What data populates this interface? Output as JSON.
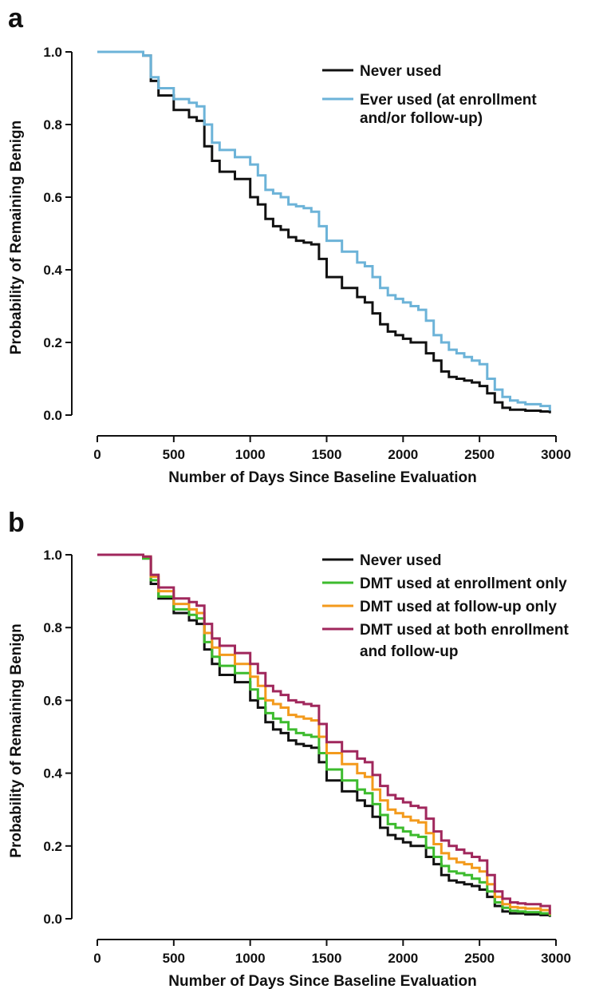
{
  "chart_data": [
    {
      "panel": "a",
      "type": "line",
      "xlabel": "Number of Days Since Baseline Evaluation",
      "ylabel": "Probability of Remaining Benign",
      "xlim": [
        0,
        3000
      ],
      "ylim": [
        0.0,
        1.0
      ],
      "xticks": [
        "0",
        "500",
        "1000",
        "1500",
        "2000",
        "2500",
        "3000"
      ],
      "yticks": [
        "0.0",
        "0.2",
        "0.4",
        "0.6",
        "0.8",
        "1.0"
      ],
      "legend_position": "top-right",
      "series": [
        {
          "name": "Never used",
          "color": "#111111",
          "x": [
            0,
            150,
            300,
            350,
            400,
            500,
            600,
            650,
            700,
            750,
            800,
            900,
            1000,
            1050,
            1100,
            1150,
            1200,
            1250,
            1300,
            1350,
            1400,
            1450,
            1500,
            1600,
            1700,
            1750,
            1800,
            1850,
            1900,
            1950,
            2000,
            2050,
            2100,
            2150,
            2200,
            2250,
            2300,
            2350,
            2400,
            2450,
            2500,
            2550,
            2600,
            2650,
            2700,
            2750,
            2800,
            2900,
            2960
          ],
          "y": [
            1.0,
            1.0,
            0.99,
            0.92,
            0.88,
            0.84,
            0.82,
            0.81,
            0.74,
            0.7,
            0.67,
            0.65,
            0.6,
            0.58,
            0.54,
            0.52,
            0.51,
            0.49,
            0.48,
            0.475,
            0.47,
            0.43,
            0.38,
            0.35,
            0.325,
            0.31,
            0.28,
            0.25,
            0.23,
            0.22,
            0.21,
            0.2,
            0.2,
            0.17,
            0.15,
            0.12,
            0.105,
            0.1,
            0.095,
            0.09,
            0.08,
            0.06,
            0.035,
            0.02,
            0.015,
            0.015,
            0.012,
            0.01,
            0.005
          ]
        },
        {
          "name": "Ever used (at enrollment and/or follow-up)",
          "color": "#6cb3d8",
          "x": [
            0,
            150,
            300,
            350,
            400,
            500,
            600,
            650,
            700,
            750,
            800,
            900,
            1000,
            1050,
            1100,
            1150,
            1200,
            1250,
            1300,
            1350,
            1400,
            1450,
            1500,
            1600,
            1700,
            1750,
            1800,
            1850,
            1900,
            1950,
            2000,
            2050,
            2100,
            2150,
            2200,
            2250,
            2300,
            2350,
            2400,
            2450,
            2500,
            2550,
            2600,
            2650,
            2700,
            2750,
            2800,
            2900,
            2960
          ],
          "y": [
            1.0,
            1.0,
            0.99,
            0.93,
            0.9,
            0.87,
            0.86,
            0.85,
            0.8,
            0.75,
            0.73,
            0.71,
            0.69,
            0.66,
            0.62,
            0.61,
            0.6,
            0.58,
            0.575,
            0.57,
            0.56,
            0.52,
            0.48,
            0.45,
            0.42,
            0.41,
            0.38,
            0.35,
            0.33,
            0.32,
            0.31,
            0.3,
            0.29,
            0.26,
            0.22,
            0.2,
            0.18,
            0.17,
            0.16,
            0.15,
            0.14,
            0.1,
            0.07,
            0.05,
            0.04,
            0.035,
            0.03,
            0.025,
            0.012
          ]
        }
      ]
    },
    {
      "panel": "b",
      "type": "line",
      "xlabel": "Number of Days Since Baseline Evaluation",
      "ylabel": "Probability of Remaining Benign",
      "xlim": [
        0,
        3000
      ],
      "ylim": [
        0.0,
        1.0
      ],
      "xticks": [
        "0",
        "500",
        "1000",
        "1500",
        "2000",
        "2500",
        "3000"
      ],
      "yticks": [
        "0.0",
        "0.2",
        "0.4",
        "0.6",
        "0.8",
        "1.0"
      ],
      "legend_position": "top-right",
      "series": [
        {
          "name": "Never used",
          "color": "#111111",
          "x": [
            0,
            150,
            300,
            350,
            400,
            500,
            600,
            650,
            700,
            750,
            800,
            900,
            1000,
            1050,
            1100,
            1150,
            1200,
            1250,
            1300,
            1350,
            1400,
            1450,
            1500,
            1600,
            1700,
            1750,
            1800,
            1850,
            1900,
            1950,
            2000,
            2050,
            2100,
            2150,
            2200,
            2250,
            2300,
            2350,
            2400,
            2450,
            2500,
            2550,
            2600,
            2650,
            2700,
            2750,
            2800,
            2900,
            2960
          ],
          "y": [
            1.0,
            1.0,
            0.99,
            0.92,
            0.88,
            0.84,
            0.82,
            0.81,
            0.74,
            0.7,
            0.67,
            0.65,
            0.6,
            0.58,
            0.54,
            0.52,
            0.51,
            0.49,
            0.48,
            0.475,
            0.47,
            0.43,
            0.38,
            0.35,
            0.325,
            0.31,
            0.28,
            0.25,
            0.23,
            0.22,
            0.21,
            0.2,
            0.2,
            0.17,
            0.15,
            0.12,
            0.105,
            0.1,
            0.095,
            0.09,
            0.08,
            0.06,
            0.035,
            0.02,
            0.015,
            0.015,
            0.012,
            0.01,
            0.005
          ]
        },
        {
          "name": "DMT used at enrollment only",
          "color": "#3dbb2e",
          "x": [
            0,
            150,
            300,
            350,
            400,
            500,
            600,
            650,
            700,
            750,
            800,
            900,
            1000,
            1050,
            1100,
            1150,
            1200,
            1250,
            1300,
            1350,
            1400,
            1450,
            1500,
            1600,
            1700,
            1750,
            1800,
            1850,
            1900,
            1950,
            2000,
            2050,
            2100,
            2150,
            2200,
            2250,
            2300,
            2350,
            2400,
            2450,
            2500,
            2550,
            2600,
            2650,
            2700,
            2750,
            2800,
            2900,
            2960
          ],
          "y": [
            1.0,
            1.0,
            0.99,
            0.93,
            0.885,
            0.85,
            0.835,
            0.825,
            0.76,
            0.72,
            0.695,
            0.675,
            0.63,
            0.605,
            0.565,
            0.55,
            0.54,
            0.52,
            0.51,
            0.505,
            0.5,
            0.455,
            0.41,
            0.38,
            0.355,
            0.345,
            0.315,
            0.285,
            0.26,
            0.25,
            0.24,
            0.23,
            0.225,
            0.195,
            0.17,
            0.145,
            0.13,
            0.125,
            0.12,
            0.11,
            0.1,
            0.075,
            0.045,
            0.03,
            0.022,
            0.02,
            0.018,
            0.015,
            0.007
          ]
        },
        {
          "name": "DMT used at follow-up only",
          "color": "#f39a1c",
          "x": [
            0,
            150,
            300,
            350,
            400,
            500,
            600,
            650,
            700,
            750,
            800,
            900,
            1000,
            1050,
            1100,
            1150,
            1200,
            1250,
            1300,
            1350,
            1400,
            1450,
            1500,
            1600,
            1700,
            1750,
            1800,
            1850,
            1900,
            1950,
            2000,
            2050,
            2100,
            2150,
            2200,
            2250,
            2300,
            2350,
            2400,
            2450,
            2500,
            2550,
            2600,
            2650,
            2700,
            2750,
            2800,
            2900,
            2960
          ],
          "y": [
            1.0,
            1.0,
            0.995,
            0.94,
            0.9,
            0.865,
            0.85,
            0.84,
            0.785,
            0.745,
            0.725,
            0.7,
            0.665,
            0.64,
            0.6,
            0.59,
            0.58,
            0.56,
            0.555,
            0.55,
            0.545,
            0.5,
            0.455,
            0.425,
            0.4,
            0.39,
            0.355,
            0.325,
            0.3,
            0.29,
            0.28,
            0.27,
            0.265,
            0.235,
            0.205,
            0.18,
            0.165,
            0.155,
            0.15,
            0.14,
            0.13,
            0.095,
            0.06,
            0.04,
            0.032,
            0.03,
            0.028,
            0.024,
            0.01
          ]
        },
        {
          "name": "DMT used at both enrollment and follow-up",
          "color": "#a0275c",
          "x": [
            0,
            150,
            300,
            350,
            400,
            500,
            600,
            650,
            700,
            750,
            800,
            900,
            1000,
            1050,
            1100,
            1150,
            1200,
            1250,
            1300,
            1350,
            1400,
            1450,
            1500,
            1600,
            1700,
            1750,
            1800,
            1850,
            1900,
            1950,
            2000,
            2050,
            2100,
            2150,
            2200,
            2250,
            2300,
            2350,
            2400,
            2450,
            2500,
            2550,
            2600,
            2650,
            2700,
            2750,
            2800,
            2900,
            2960
          ],
          "y": [
            1.0,
            1.0,
            0.995,
            0.945,
            0.91,
            0.88,
            0.87,
            0.86,
            0.81,
            0.77,
            0.75,
            0.73,
            0.7,
            0.675,
            0.64,
            0.625,
            0.615,
            0.6,
            0.595,
            0.59,
            0.585,
            0.535,
            0.485,
            0.46,
            0.44,
            0.43,
            0.395,
            0.365,
            0.34,
            0.33,
            0.32,
            0.31,
            0.305,
            0.275,
            0.24,
            0.215,
            0.2,
            0.19,
            0.18,
            0.17,
            0.16,
            0.12,
            0.075,
            0.055,
            0.045,
            0.042,
            0.04,
            0.035,
            0.012
          ]
        }
      ]
    }
  ],
  "panels": [
    {
      "letter": "a",
      "legend": [
        {
          "lines": [
            "Never used"
          ],
          "color": "#111111"
        },
        {
          "lines": [
            "Ever used (at enrollment",
            "and/or follow-up)"
          ],
          "color": "#6cb3d8"
        }
      ]
    },
    {
      "letter": "b",
      "legend": [
        {
          "lines": [
            "Never used"
          ],
          "color": "#111111"
        },
        {
          "lines": [
            "DMT used at enrollment only"
          ],
          "color": "#3dbb2e"
        },
        {
          "lines": [
            "DMT used at follow-up only"
          ],
          "color": "#f39a1c"
        },
        {
          "lines": [
            "DMT used at both enrollment",
            "and follow-up"
          ],
          "color": "#a0275c"
        }
      ]
    }
  ]
}
